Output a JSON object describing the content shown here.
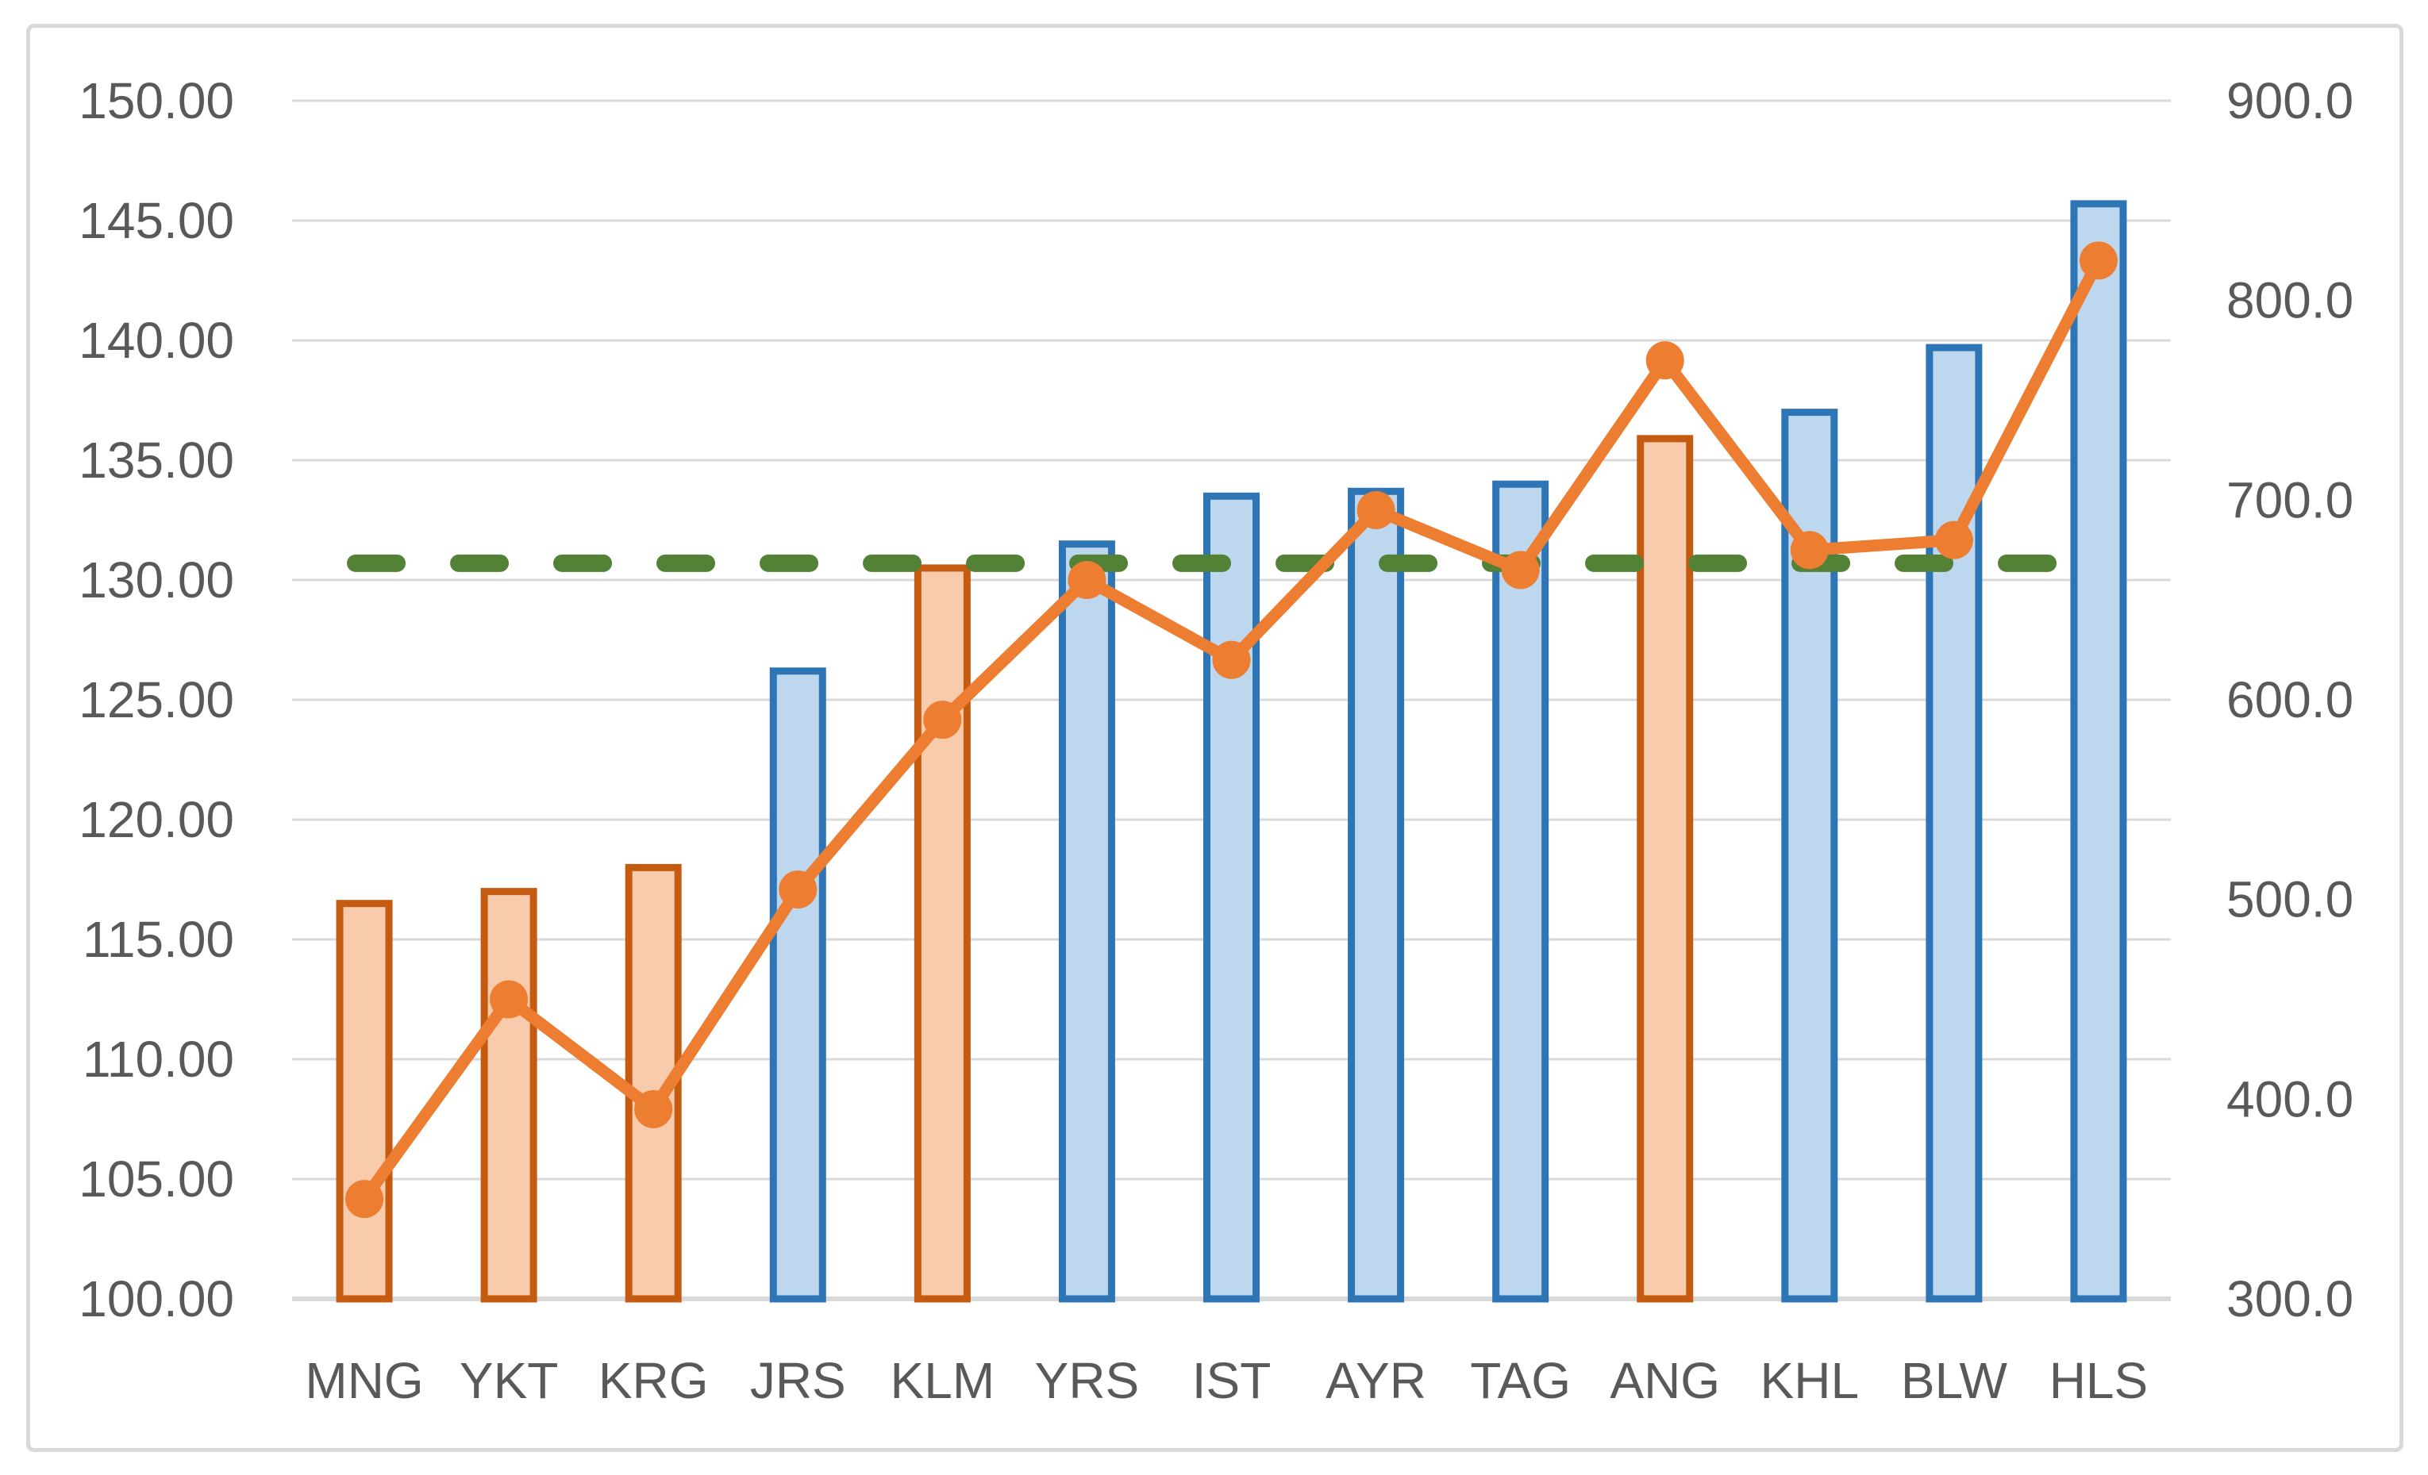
{
  "chart_data": {
    "type": "bar",
    "subtype": "combo-bar-line",
    "title": "",
    "xlabel": "",
    "ylabel": "",
    "grid": true,
    "legend": "none",
    "categories": [
      "MNG",
      "YKT",
      "KRG",
      "JRS",
      "KLM",
      "YRS",
      "IST",
      "AYR",
      "TAG",
      "ANG",
      "KHL",
      "BLW",
      "HLS"
    ],
    "series": [
      {
        "name": "bars",
        "type": "bar",
        "axis": "left",
        "values": [
          116.5,
          117.0,
          118.0,
          126.2,
          130.5,
          131.5,
          133.5,
          133.7,
          134.0,
          135.9,
          137.0,
          139.7,
          145.7
        ],
        "color_groups": [
          "orange",
          "orange",
          "orange",
          "blue",
          "orange",
          "blue",
          "blue",
          "blue",
          "blue",
          "orange",
          "blue",
          "blue",
          "blue"
        ]
      },
      {
        "name": "line-with-markers",
        "type": "line",
        "axis": "right",
        "values": [
          350,
          450,
          395,
          505,
          590,
          660,
          620,
          695,
          665,
          770,
          675,
          680,
          820
        ]
      },
      {
        "name": "target-dashed-line",
        "type": "dashed-line",
        "axis": "left",
        "value_left": 130.7,
        "value_right": 668
      }
    ],
    "left_axis": {
      "min": 100,
      "max": 150,
      "step": 5,
      "tick_labels": [
        "150.00",
        "145.00",
        "140.00",
        "135.00",
        "130.00",
        "125.00",
        "120.00",
        "115.00",
        "110.00",
        "105.00",
        "100.00"
      ]
    },
    "right_axis": {
      "min": 300,
      "max": 900,
      "step": 100,
      "tick_labels": [
        "900.0",
        "800.0",
        "700.0",
        "600.0",
        "500.0",
        "400.0",
        "300.0"
      ]
    },
    "styles": {
      "bar_blue_fill": "#BDD7EE",
      "bar_blue_border": "#2E75B6",
      "bar_orange_fill": "#F8CBAD",
      "bar_orange_border": "#C55A11",
      "line_color": "#ED7D31",
      "target_line_color": "#538135",
      "gridline_color": "#D9D9D9",
      "axis_line_color": "#D9D9D9",
      "label_color": "#595959",
      "frame_border_color": "#D9D9D9",
      "background": "#FFFFFF"
    }
  }
}
